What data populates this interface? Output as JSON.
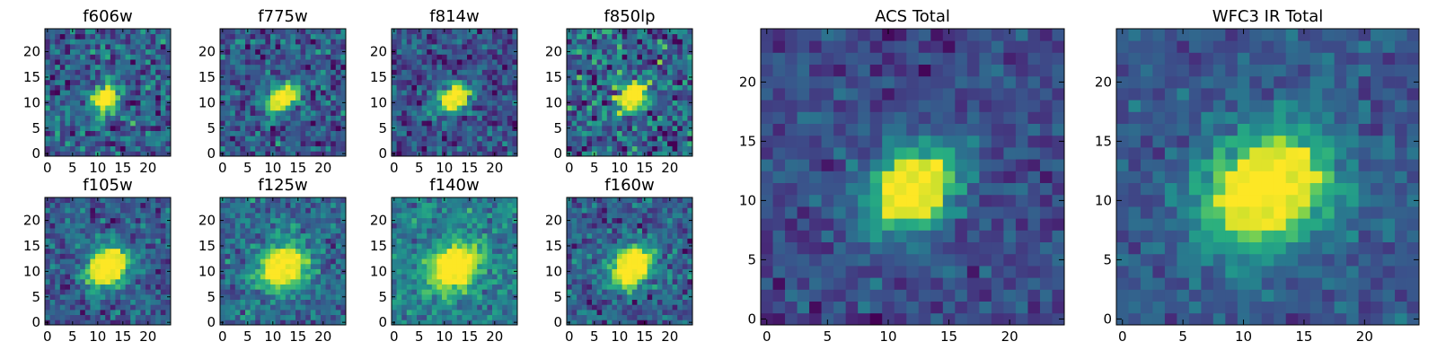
{
  "chart_data": {
    "type": "heatmap",
    "colormap": "viridis",
    "grid_size": 25,
    "panels": [
      {
        "id": "f606w",
        "title": "f606w",
        "x_ticks": [
          0,
          5,
          10,
          15,
          20
        ],
        "y_ticks": [
          0,
          5,
          10,
          15,
          20
        ],
        "xlim": [
          -0.5,
          24.5
        ],
        "ylim": [
          -0.5,
          24.5
        ],
        "center": [
          11.5,
          11.0
        ],
        "sigma_major": 2.2,
        "sigma_minor": 1.6,
        "angle_deg": 40,
        "noise": 0.3,
        "background": 0.3,
        "seed": 11
      },
      {
        "id": "f775w",
        "title": "f775w",
        "x_ticks": [
          0,
          5,
          10,
          15,
          20
        ],
        "y_ticks": [
          0,
          5,
          10,
          15,
          20
        ],
        "xlim": [
          -0.5,
          24.5
        ],
        "ylim": [
          -0.5,
          24.5
        ],
        "center": [
          12.0,
          11.0
        ],
        "sigma_major": 2.3,
        "sigma_minor": 1.6,
        "angle_deg": 40,
        "noise": 0.26,
        "background": 0.28,
        "seed": 23
      },
      {
        "id": "f814w",
        "title": "f814w",
        "x_ticks": [
          0,
          5,
          10,
          15,
          20
        ],
        "y_ticks": [
          0,
          5,
          10,
          15,
          20
        ],
        "xlim": [
          -0.5,
          24.5
        ],
        "ylim": [
          -0.5,
          24.5
        ],
        "center": [
          12.0,
          11.0
        ],
        "sigma_major": 2.4,
        "sigma_minor": 1.7,
        "angle_deg": 40,
        "noise": 0.25,
        "background": 0.25,
        "seed": 37
      },
      {
        "id": "f850lp",
        "title": "f850lp",
        "x_ticks": [
          0,
          5,
          10,
          15,
          20
        ],
        "y_ticks": [
          0,
          5,
          10,
          15,
          20
        ],
        "xlim": [
          -0.5,
          24.5
        ],
        "ylim": [
          -0.5,
          24.5
        ],
        "center": [
          12.5,
          11.5
        ],
        "sigma_major": 2.5,
        "sigma_minor": 1.7,
        "angle_deg": 40,
        "noise": 0.35,
        "background": 0.32,
        "seed": 41
      },
      {
        "id": "f105w",
        "title": "f105w",
        "x_ticks": [
          0,
          5,
          10,
          15,
          20
        ],
        "y_ticks": [
          0,
          5,
          10,
          15,
          20
        ],
        "xlim": [
          -0.5,
          24.5
        ],
        "ylim": [
          -0.5,
          24.5
        ],
        "center": [
          12.0,
          11.0
        ],
        "sigma_major": 3.4,
        "sigma_minor": 2.6,
        "angle_deg": 40,
        "noise": 0.22,
        "background": 0.28,
        "seed": 53
      },
      {
        "id": "f125w",
        "title": "f125w",
        "x_ticks": [
          0,
          5,
          10,
          15,
          20
        ],
        "y_ticks": [
          0,
          5,
          10,
          15,
          20
        ],
        "xlim": [
          -0.5,
          24.5
        ],
        "ylim": [
          -0.5,
          24.5
        ],
        "center": [
          12.0,
          11.0
        ],
        "sigma_major": 3.6,
        "sigma_minor": 2.8,
        "angle_deg": 40,
        "noise": 0.22,
        "background": 0.35,
        "seed": 67
      },
      {
        "id": "f140w",
        "title": "f140w",
        "x_ticks": [
          0,
          5,
          10,
          15,
          20
        ],
        "y_ticks": [
          0,
          5,
          10,
          15,
          20
        ],
        "xlim": [
          -0.5,
          24.5
        ],
        "ylim": [
          -0.5,
          24.5
        ],
        "center": [
          12.0,
          11.0
        ],
        "sigma_major": 3.8,
        "sigma_minor": 3.0,
        "angle_deg": 40,
        "noise": 0.2,
        "background": 0.42,
        "seed": 71
      },
      {
        "id": "f160w",
        "title": "f160w",
        "x_ticks": [
          0,
          5,
          10,
          15,
          20
        ],
        "y_ticks": [
          0,
          5,
          10,
          15,
          20
        ],
        "xlim": [
          -0.5,
          24.5
        ],
        "ylim": [
          -0.5,
          24.5
        ],
        "center": [
          12.5,
          11.0
        ],
        "sigma_major": 3.5,
        "sigma_minor": 2.6,
        "angle_deg": 40,
        "noise": 0.24,
        "background": 0.3,
        "seed": 83
      },
      {
        "id": "acs-total",
        "title": "ACS Total",
        "x_ticks": [
          0,
          5,
          10,
          15,
          20
        ],
        "y_ticks": [
          0,
          5,
          10,
          15,
          20
        ],
        "xlim": [
          -0.5,
          24.5
        ],
        "ylim": [
          -0.5,
          24.5
        ],
        "center": [
          12.0,
          11.0
        ],
        "sigma_major": 3.0,
        "sigma_minor": 2.2,
        "angle_deg": 40,
        "noise": 0.15,
        "background": 0.22,
        "seed": 97
      },
      {
        "id": "wfc3-ir-total",
        "title": "WFC3 IR Total",
        "x_ticks": [
          0,
          5,
          10,
          15,
          20
        ],
        "y_ticks": [
          0,
          5,
          10,
          15,
          20
        ],
        "xlim": [
          -0.5,
          24.5
        ],
        "ylim": [
          -0.5,
          24.5
        ],
        "center": [
          12.0,
          11.0
        ],
        "sigma_major": 4.0,
        "sigma_minor": 3.2,
        "angle_deg": 40,
        "noise": 0.14,
        "background": 0.28,
        "seed": 101
      }
    ]
  }
}
